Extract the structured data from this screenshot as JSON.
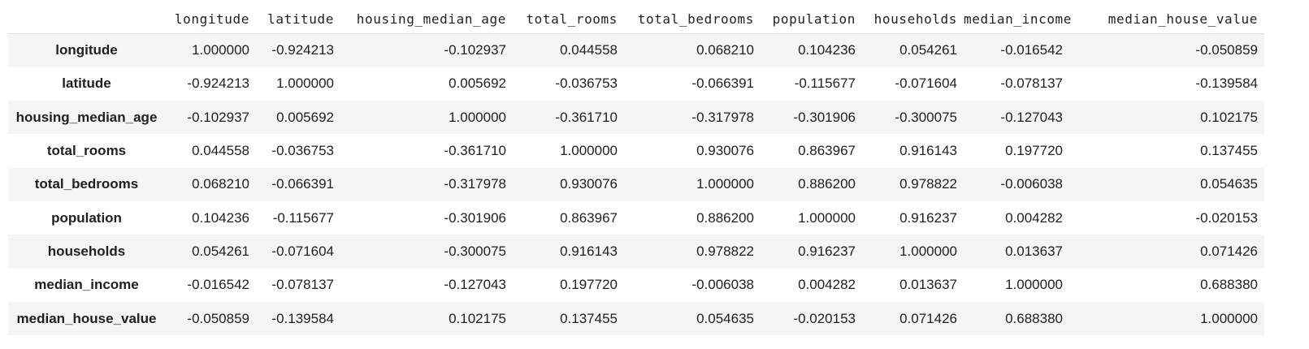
{
  "table": {
    "columns": [
      "longitude",
      "latitude",
      "housing_median_age",
      "total_rooms",
      "total_bedrooms",
      "population",
      "households",
      "median_income",
      "median_house_value"
    ],
    "rows": [
      {
        "label": "longitude",
        "values": [
          "1.000000",
          "-0.924213",
          "-0.102937",
          "0.044558",
          "0.068210",
          "0.104236",
          "0.054261",
          "-0.016542",
          "-0.050859"
        ]
      },
      {
        "label": "latitude",
        "values": [
          "-0.924213",
          "1.000000",
          "0.005692",
          "-0.036753",
          "-0.066391",
          "-0.115677",
          "-0.071604",
          "-0.078137",
          "-0.139584"
        ]
      },
      {
        "label": "housing_median_age",
        "values": [
          "-0.102937",
          "0.005692",
          "1.000000",
          "-0.361710",
          "-0.317978",
          "-0.301906",
          "-0.300075",
          "-0.127043",
          "0.102175"
        ]
      },
      {
        "label": "total_rooms",
        "values": [
          "0.044558",
          "-0.036753",
          "-0.361710",
          "1.000000",
          "0.930076",
          "0.863967",
          "0.916143",
          "0.197720",
          "0.137455"
        ]
      },
      {
        "label": "total_bedrooms",
        "values": [
          "0.068210",
          "-0.066391",
          "-0.317978",
          "0.930076",
          "1.000000",
          "0.886200",
          "0.978822",
          "-0.006038",
          "0.054635"
        ]
      },
      {
        "label": "population",
        "values": [
          "0.104236",
          "-0.115677",
          "-0.301906",
          "0.863967",
          "0.886200",
          "1.000000",
          "0.916237",
          "0.004282",
          "-0.020153"
        ]
      },
      {
        "label": "households",
        "values": [
          "0.054261",
          "-0.071604",
          "-0.300075",
          "0.916143",
          "0.978822",
          "0.916237",
          "1.000000",
          "0.013637",
          "0.071426"
        ]
      },
      {
        "label": "median_income",
        "values": [
          "-0.016542",
          "-0.078137",
          "-0.127043",
          "0.197720",
          "-0.006038",
          "0.004282",
          "0.013637",
          "1.000000",
          "0.688380"
        ]
      },
      {
        "label": "median_house_value",
        "values": [
          "-0.050859",
          "-0.139584",
          "0.102175",
          "0.137455",
          "0.054635",
          "-0.020153",
          "0.071426",
          "0.688380",
          "1.000000"
        ]
      }
    ]
  }
}
